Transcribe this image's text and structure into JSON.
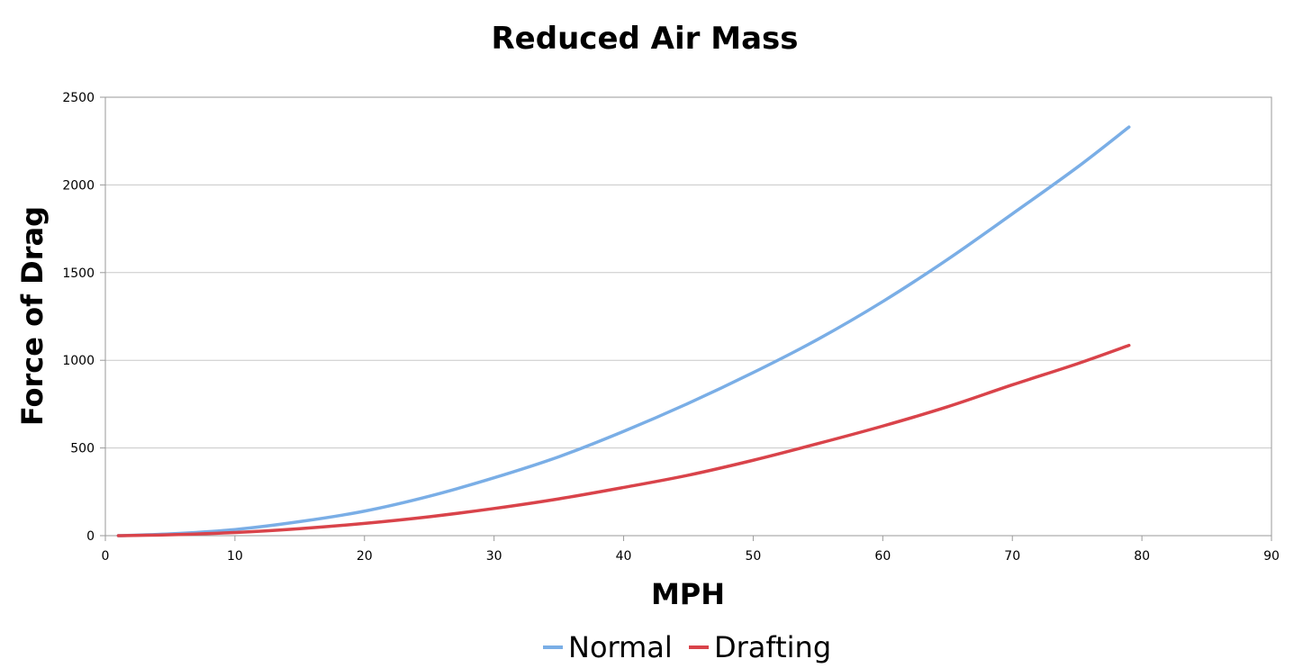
{
  "chart_data": {
    "type": "line",
    "title": "Reduced Air Mass",
    "xlabel": "MPH",
    "ylabel": "Force of Drag",
    "xlim": [
      0,
      90
    ],
    "ylim": [
      0,
      2500
    ],
    "x_ticks": [
      "0",
      "10",
      "20",
      "30",
      "40",
      "50",
      "60",
      "70",
      "80",
      "90"
    ],
    "y_ticks": [
      "0",
      "500",
      "1000",
      "1500",
      "2000",
      "2500"
    ],
    "grid": "horizontal",
    "legend_position": "bottom",
    "x": [
      1,
      5,
      10,
      15,
      20,
      25,
      30,
      35,
      40,
      45,
      50,
      55,
      60,
      65,
      70,
      75,
      79
    ],
    "series": [
      {
        "name": "Normal",
        "color": "#7aaee6",
        "values": [
          0,
          10,
          35,
          80,
          140,
          225,
          330,
          450,
          595,
          755,
          930,
          1120,
          1335,
          1575,
          1835,
          2100,
          2330
        ]
      },
      {
        "name": "Drafting",
        "color": "#d9434a",
        "values": [
          0,
          5,
          18,
          40,
          70,
          108,
          155,
          210,
          275,
          345,
          430,
          525,
          625,
          735,
          860,
          980,
          1085
        ]
      }
    ]
  }
}
